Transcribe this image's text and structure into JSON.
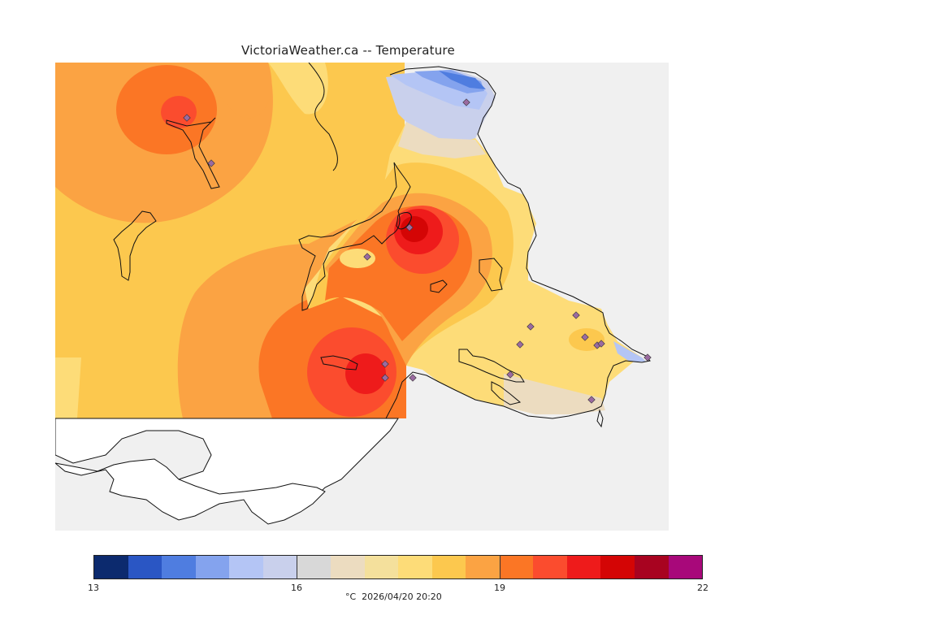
{
  "header": {
    "title": "VictoriaWeather.ca -- Temperature"
  },
  "map": {
    "ocean_color": "#f0f0f0",
    "land_unmapped_color": "#ffffff",
    "coastline_color": "#111111",
    "station_marker_color": "#9a6aa0"
  },
  "legend": {
    "min": 13,
    "max": 22,
    "tick_labels": [
      "13",
      "16",
      "19",
      "22"
    ],
    "colors": [
      "#0c2a6e",
      "#2a56c4",
      "#4f7de0",
      "#84a3ee",
      "#b4c5f5",
      "#c9d0ec",
      "#d8d8d8",
      "#ecdcc0",
      "#f4e09c",
      "#fddc78",
      "#fcc84e",
      "#fba343",
      "#fb7625",
      "#fb4c2e",
      "#ee1b1b",
      "#d40505",
      "#a80320",
      "#a8087a"
    ],
    "caption": "°C  2026/04/20 20:20"
  }
}
